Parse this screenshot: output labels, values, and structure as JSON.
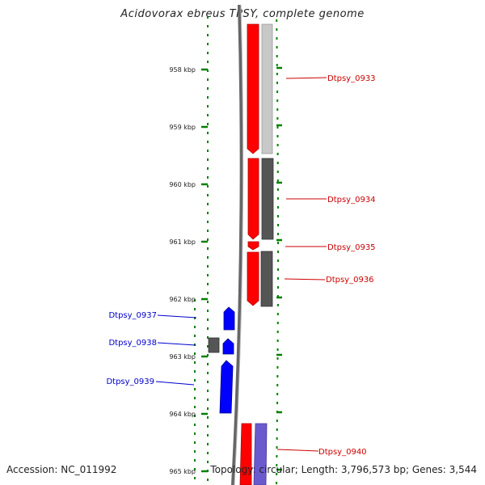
{
  "title": "Acidovorax ebreus TPSY, complete genome",
  "footer": {
    "accession": "Accession: NC_011992",
    "summary": "Topology: circular; Length: 3,796,573 bp; Genes: 3,544"
  },
  "colors": {
    "forward_gene": "#ff0000",
    "reverse_gene_blue": "#0000ff",
    "cds_gray": "#555555",
    "tick_green": "#008000",
    "backbone": "#555555",
    "label_red": "#cc0000",
    "label_blue": "#0000cc"
  },
  "ruler": {
    "ticks": [
      {
        "kbp": 958,
        "label": "958 kbp"
      },
      {
        "kbp": 959,
        "label": "959 kbp"
      },
      {
        "kbp": 960,
        "label": "960 kbp"
      },
      {
        "kbp": 961,
        "label": "961 kbp"
      },
      {
        "kbp": 962,
        "label": "962 kbp"
      },
      {
        "kbp": 963,
        "label": "963 kbp"
      },
      {
        "kbp": 964,
        "label": "964 kbp"
      },
      {
        "kbp": 965,
        "label": "965 kbp"
      }
    ]
  },
  "labels": {
    "right": [
      {
        "name": "Dtpsy_0933"
      },
      {
        "name": "Dtpsy_0934"
      },
      {
        "name": "Dtpsy_0935"
      },
      {
        "name": "Dtpsy_0936"
      },
      {
        "name": "Dtpsy_0940"
      }
    ],
    "left": [
      {
        "name": "Dtpsy_0937"
      },
      {
        "name": "Dtpsy_0938"
      },
      {
        "name": "Dtpsy_0939"
      }
    ]
  }
}
